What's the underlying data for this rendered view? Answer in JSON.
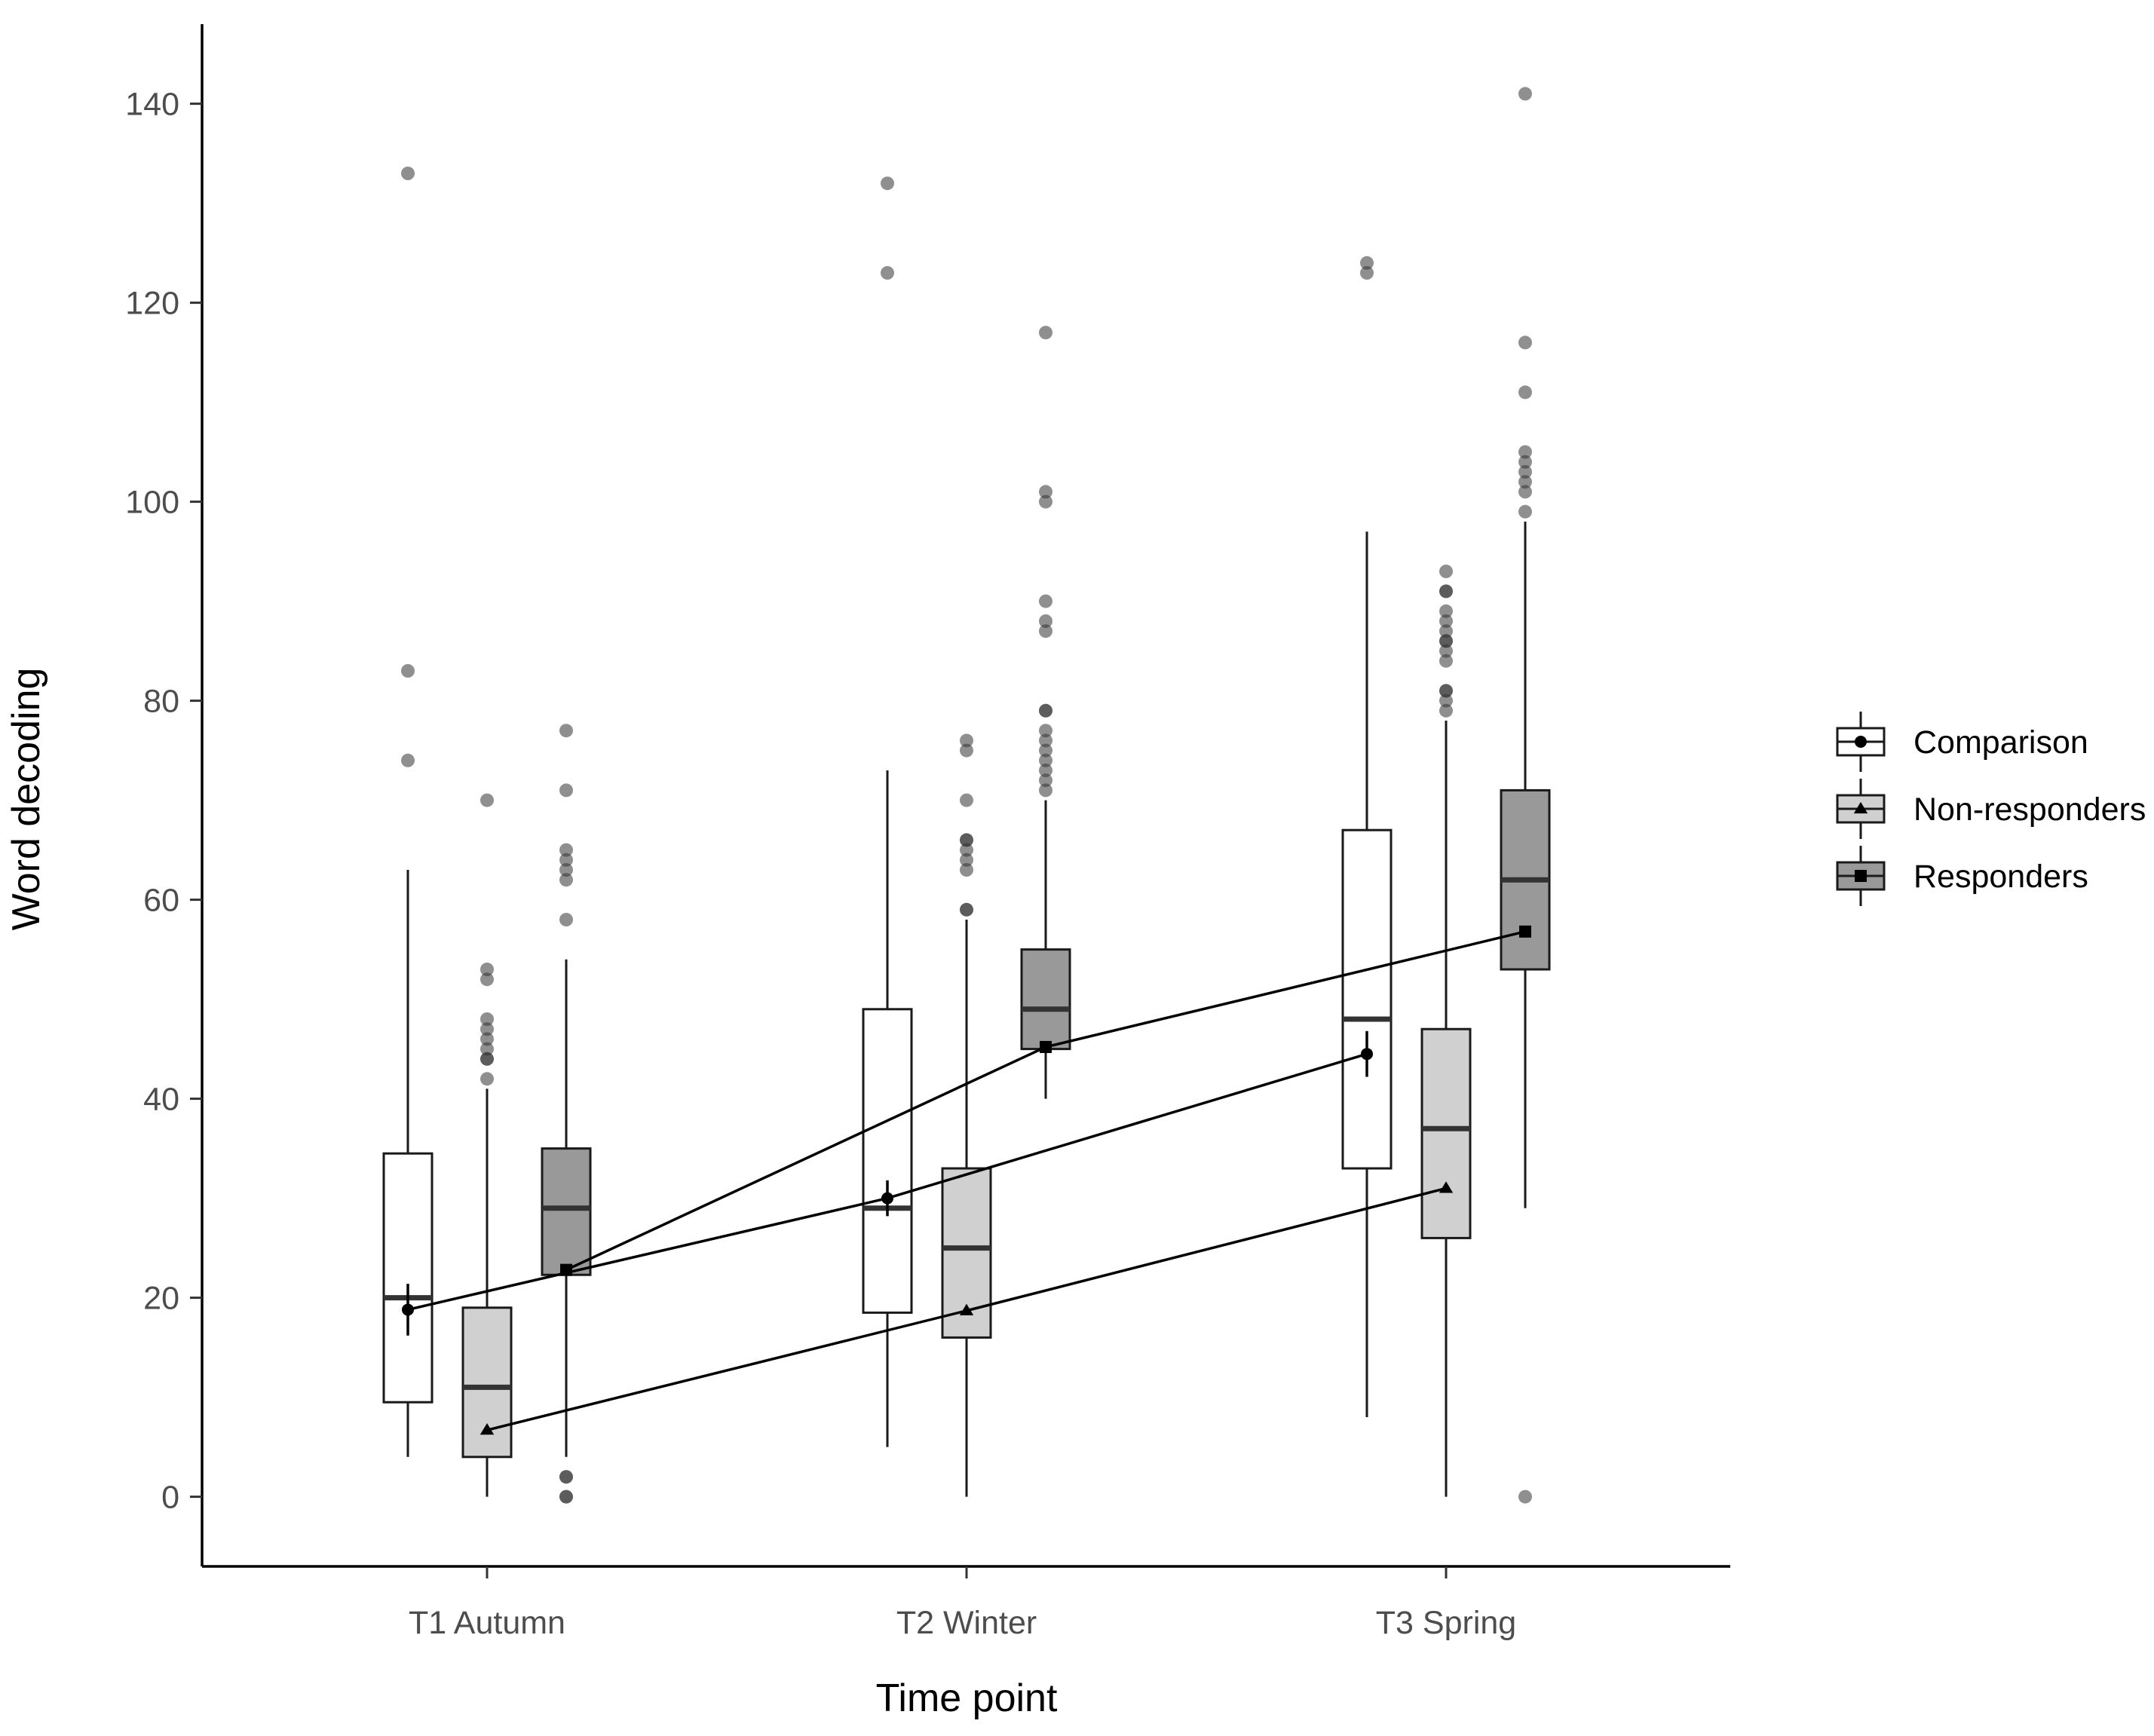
{
  "chart_data": {
    "type": "box",
    "xlabel": "Time point",
    "ylabel": "Word decoding",
    "ylim": [
      -7,
      148
    ],
    "yticks": [
      0,
      20,
      40,
      60,
      80,
      100,
      120,
      140
    ],
    "categories": [
      "T1 Autumn",
      "T2 Winter",
      "T3 Spring"
    ],
    "grid": false,
    "legend_position": "right",
    "colors": {
      "Comparison": "#ffffff",
      "Non-responders": "#d0d0d0",
      "Responders": "#999999"
    },
    "series": [
      {
        "name": "Comparison",
        "marker": "circle",
        "boxes": [
          {
            "category": "T1 Autumn",
            "lower_whisker": 4,
            "q1": 9.5,
            "median": 20,
            "q3": 34.5,
            "upper_whisker": 63,
            "outliers": [
              74,
              83,
              133
            ]
          },
          {
            "category": "T2 Winter",
            "lower_whisker": 5,
            "q1": 18.5,
            "median": 29,
            "q3": 49,
            "upper_whisker": 73,
            "outliers": [
              123,
              132
            ]
          },
          {
            "category": "T3 Spring",
            "lower_whisker": 8,
            "q1": 33,
            "median": 48,
            "q3": 67,
            "upper_whisker": 97,
            "outliers": [
              123,
              124
            ]
          }
        ],
        "means": [
          {
            "category": "T1 Autumn",
            "mean": 18.8,
            "ci": [
              16.2,
              21.4
            ]
          },
          {
            "category": "T2 Winter",
            "mean": 30,
            "ci": [
              28.2,
              31.8
            ]
          },
          {
            "category": "T3 Spring",
            "mean": 44.5,
            "ci": [
              42.2,
              46.8
            ]
          }
        ]
      },
      {
        "name": "Non-responders",
        "marker": "triangle",
        "boxes": [
          {
            "category": "T1 Autumn",
            "lower_whisker": 0,
            "q1": 4,
            "median": 11,
            "q3": 19,
            "upper_whisker": 41,
            "outliers": [
              42,
              44,
              44,
              45,
              46,
              47,
              48,
              52,
              53,
              70
            ]
          },
          {
            "category": "T2 Winter",
            "lower_whisker": 0,
            "q1": 16,
            "median": 25,
            "q3": 33,
            "upper_whisker": 58,
            "outliers": [
              59,
              59,
              63,
              64,
              65,
              66,
              66,
              70,
              75,
              76
            ]
          },
          {
            "category": "T3 Spring",
            "lower_whisker": 0,
            "q1": 26,
            "median": 37,
            "q3": 47,
            "upper_whisker": 78,
            "outliers": [
              79,
              80,
              81,
              81,
              84,
              85,
              86,
              86,
              87,
              88,
              89,
              91,
              91,
              93
            ]
          }
        ],
        "means": [
          {
            "category": "T1 Autumn",
            "mean": 6.7
          },
          {
            "category": "T2 Winter",
            "mean": 18.7
          },
          {
            "category": "T3 Spring",
            "mean": 31
          }
        ]
      },
      {
        "name": "Responders",
        "marker": "square",
        "boxes": [
          {
            "category": "T1 Autumn",
            "lower_whisker": 4,
            "q1": 22.3,
            "median": 29,
            "q3": 35,
            "upper_whisker": 54,
            "outliers": [
              0,
              0,
              2,
              2,
              58,
              62,
              63,
              64,
              65,
              71,
              77
            ]
          },
          {
            "category": "T2 Winter",
            "lower_whisker": 40,
            "q1": 45,
            "median": 49,
            "q3": 55,
            "upper_whisker": 70,
            "outliers": [
              71,
              72,
              73,
              74,
              75,
              76,
              77,
              79,
              79,
              87,
              88,
              90,
              100,
              101,
              117
            ]
          },
          {
            "category": "T3 Spring",
            "lower_whisker": 29,
            "q1": 53,
            "median": 62,
            "q3": 71,
            "upper_whisker": 98,
            "outliers": [
              0,
              99,
              101,
              102,
              103,
              104,
              105,
              111,
              116,
              141
            ]
          }
        ],
        "means": [
          {
            "category": "T1 Autumn",
            "mean": 22.8
          },
          {
            "category": "T2 Winter",
            "mean": 45.2
          },
          {
            "category": "T3 Spring",
            "mean": 56.8
          }
        ]
      }
    ]
  }
}
